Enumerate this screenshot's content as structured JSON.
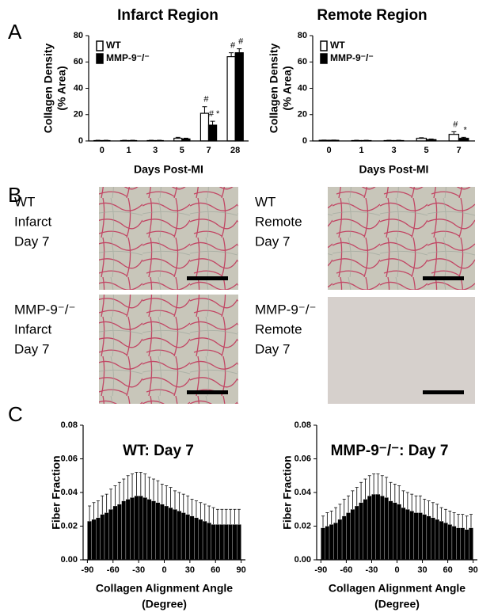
{
  "panel_labels": [
    "A",
    "B",
    "C"
  ],
  "images": [
    {
      "label": [
        "WT",
        "Infarct",
        "Day 7"
      ]
    },
    {
      "label": [
        "WT",
        "Remote",
        "Day 7"
      ]
    },
    {
      "label": [
        "MMP-9⁻/⁻",
        "Infarct",
        "Day 7"
      ]
    },
    {
      "label": [
        "MMP-9⁻/⁻",
        "Remote",
        "Day 7"
      ]
    }
  ],
  "chart_data": [
    {
      "type": "bar",
      "title": "Infarct Region",
      "ylabel": [
        "Collagen Density",
        "(% Area)"
      ],
      "xlabel": [
        "Days Post-MI"
      ],
      "categories": [
        "0",
        "1",
        "3",
        "5",
        "7",
        "28"
      ],
      "series": [
        {
          "name": "WT",
          "color": "#ffffff",
          "values": [
            0.3,
            0.3,
            0.3,
            2,
            21,
            64
          ],
          "errors": [
            0.2,
            0.2,
            0.2,
            0.8,
            5,
            3
          ],
          "markers": [
            null,
            null,
            null,
            null,
            "#",
            "#"
          ]
        },
        {
          "name": "MMP-9⁻/⁻",
          "color": "#000000",
          "values": [
            0.3,
            0.3,
            0.3,
            1.5,
            12,
            67
          ],
          "errors": [
            0.2,
            0.2,
            0.2,
            0.6,
            3,
            3
          ],
          "markers": [
            null,
            null,
            null,
            null,
            "# *",
            "#"
          ]
        }
      ],
      "ylim": [
        0,
        80
      ],
      "yticks": [
        0,
        20,
        40,
        60,
        80
      ],
      "legend": "upper left"
    },
    {
      "type": "bar",
      "title": "Remote Region",
      "ylabel": [
        "Collagen Density",
        "(% Area)"
      ],
      "xlabel": [
        "Days Post-MI"
      ],
      "categories": [
        "0",
        "1",
        "3",
        "5",
        "7"
      ],
      "series": [
        {
          "name": "WT",
          "color": "#ffffff",
          "values": [
            0.5,
            0.3,
            0.3,
            2,
            5
          ],
          "errors": [
            0.2,
            0.2,
            0.2,
            0.5,
            2
          ],
          "markers": [
            null,
            null,
            null,
            null,
            "#"
          ]
        },
        {
          "name": "MMP-9⁻/⁻",
          "color": "#000000",
          "values": [
            0.5,
            0.3,
            0.3,
            1,
            2
          ],
          "errors": [
            0.2,
            0.2,
            0.2,
            0.4,
            0.8
          ],
          "markers": [
            null,
            null,
            null,
            null,
            "*"
          ]
        }
      ],
      "ylim": [
        0,
        80
      ],
      "yticks": [
        0,
        20,
        40,
        60,
        80
      ],
      "legend": "upper left"
    },
    {
      "type": "histogram",
      "title": "WT: Day 7",
      "ylabel": [
        "Fiber Fraction"
      ],
      "xlabel": [
        "Collagen Alignment Angle",
        "(Degree)"
      ],
      "bins": [
        -90,
        -85,
        -80,
        -75,
        -70,
        -65,
        -60,
        -55,
        -50,
        -45,
        -40,
        -35,
        -30,
        -25,
        -20,
        -15,
        -10,
        -5,
        0,
        5,
        10,
        15,
        20,
        25,
        30,
        35,
        40,
        45,
        50,
        55,
        60,
        65,
        70,
        75,
        80,
        85,
        90
      ],
      "values": [
        0.023,
        0.024,
        0.025,
        0.027,
        0.028,
        0.03,
        0.032,
        0.033,
        0.035,
        0.036,
        0.037,
        0.038,
        0.038,
        0.037,
        0.036,
        0.035,
        0.034,
        0.033,
        0.032,
        0.031,
        0.03,
        0.029,
        0.028,
        0.027,
        0.026,
        0.025,
        0.024,
        0.023,
        0.022,
        0.021,
        0.021,
        0.021,
        0.021,
        0.021,
        0.021,
        0.021
      ],
      "errors": [
        0.009,
        0.01,
        0.01,
        0.011,
        0.011,
        0.012,
        0.012,
        0.013,
        0.013,
        0.014,
        0.014,
        0.014,
        0.014,
        0.014,
        0.013,
        0.013,
        0.013,
        0.012,
        0.012,
        0.012,
        0.011,
        0.011,
        0.011,
        0.011,
        0.01,
        0.01,
        0.01,
        0.01,
        0.01,
        0.01,
        0.009,
        0.009,
        0.009,
        0.009,
        0.009,
        0.009
      ],
      "color": "#000000",
      "xlim": [
        -95,
        95
      ],
      "xticks": [
        -90,
        -60,
        -30,
        0,
        30,
        60,
        90
      ],
      "ylim": [
        0,
        0.08
      ],
      "yticks": [
        {
          "value": 0,
          "label": "0.00"
        },
        {
          "value": 0.02,
          "label": "0.02"
        },
        {
          "value": 0.04,
          "label": "0.04"
        },
        {
          "value": 0.06,
          "label": "0.06"
        },
        {
          "value": 0.08,
          "label": "0.08"
        }
      ]
    },
    {
      "type": "histogram",
      "title": "MMP-9⁻/⁻: Day 7",
      "ylabel": [
        "Fiber Fraction"
      ],
      "xlabel": [
        "Collagen Alignment Angle",
        "(Degree)"
      ],
      "bins": [
        -90,
        -85,
        -80,
        -75,
        -70,
        -65,
        -60,
        -55,
        -50,
        -45,
        -40,
        -35,
        -30,
        -25,
        -20,
        -15,
        -10,
        -5,
        0,
        5,
        10,
        15,
        20,
        25,
        30,
        35,
        40,
        45,
        50,
        55,
        60,
        65,
        70,
        75,
        80,
        85,
        90
      ],
      "values": [
        0.019,
        0.02,
        0.021,
        0.022,
        0.024,
        0.026,
        0.028,
        0.03,
        0.032,
        0.034,
        0.036,
        0.038,
        0.039,
        0.039,
        0.038,
        0.037,
        0.035,
        0.034,
        0.033,
        0.031,
        0.03,
        0.029,
        0.028,
        0.028,
        0.027,
        0.026,
        0.025,
        0.024,
        0.023,
        0.022,
        0.021,
        0.02,
        0.019,
        0.019,
        0.018,
        0.019
      ],
      "errors": [
        0.007,
        0.008,
        0.008,
        0.009,
        0.009,
        0.01,
        0.01,
        0.011,
        0.011,
        0.012,
        0.012,
        0.012,
        0.012,
        0.012,
        0.012,
        0.012,
        0.011,
        0.011,
        0.011,
        0.01,
        0.01,
        0.01,
        0.01,
        0.01,
        0.009,
        0.009,
        0.009,
        0.009,
        0.008,
        0.008,
        0.008,
        0.008,
        0.008,
        0.008,
        0.008,
        0.008
      ],
      "color": "#000000",
      "xlim": [
        -95,
        95
      ],
      "xticks": [
        -90,
        -60,
        -30,
        0,
        30,
        60,
        90
      ],
      "ylim": [
        0,
        0.08
      ],
      "yticks": [
        {
          "value": 0,
          "label": "0.00"
        },
        {
          "value": 0.02,
          "label": "0.02"
        },
        {
          "value": 0.04,
          "label": "0.04"
        },
        {
          "value": 0.06,
          "label": "0.06"
        },
        {
          "value": 0.08,
          "label": "0.08"
        }
      ]
    }
  ]
}
